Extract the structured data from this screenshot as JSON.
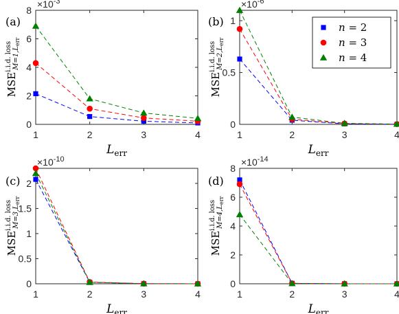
{
  "chart_data": [
    {
      "type": "line",
      "panel_label": "(a)",
      "x": [
        1,
        2,
        3,
        4
      ],
      "xlabel": "L",
      "xlabel_sub": "err",
      "ylabel_main": "MSE",
      "ylabel_sup": "i.i.d. loss",
      "ylabel_sub": "M=1,L",
      "ylabel_sub2": "err",
      "exponent_base": "×10",
      "exponent_power": "-3",
      "xlim": [
        1,
        4
      ],
      "ylim": [
        0,
        8
      ],
      "yticks": [
        0,
        2,
        4,
        6,
        8
      ],
      "xticks": [
        1,
        2,
        3,
        4
      ],
      "series": [
        {
          "label": "n = 2",
          "color": "#0000ff",
          "marker": "square",
          "values": [
            2.15,
            0.55,
            0.22,
            0.1
          ]
        },
        {
          "label": "n = 3",
          "color": "#ff0000",
          "marker": "circle",
          "values": [
            4.3,
            1.1,
            0.45,
            0.22
          ]
        },
        {
          "label": "n = 4",
          "color": "#008000",
          "marker": "triangle",
          "values": [
            6.9,
            1.8,
            0.8,
            0.42
          ]
        }
      ]
    },
    {
      "type": "line",
      "panel_label": "(b)",
      "x": [
        1,
        2,
        3,
        4
      ],
      "xlabel": "L",
      "xlabel_sub": "err",
      "ylabel_main": "MSE",
      "ylabel_sup": "i.i.d. loss",
      "ylabel_sub": "M=2,L",
      "ylabel_sub2": "err",
      "exponent_base": "×10",
      "exponent_power": "-6",
      "xlim": [
        1,
        4
      ],
      "ylim": [
        0,
        1.1
      ],
      "yticks": [
        0,
        0.5,
        1
      ],
      "ytick_labels": [
        "0",
        "0.5",
        "1"
      ],
      "xticks": [
        1,
        2,
        3,
        4
      ],
      "legend_position": "top-right",
      "series": [
        {
          "label": "n = 2",
          "color": "#0000ff",
          "marker": "square",
          "values": [
            0.63,
            0.04,
            0.005,
            0.001
          ]
        },
        {
          "label": "n = 3",
          "color": "#ff0000",
          "marker": "circle",
          "values": [
            0.92,
            0.05,
            0.008,
            0.002
          ]
        },
        {
          "label": "n = 4",
          "color": "#008000",
          "marker": "triangle",
          "values": [
            1.1,
            0.07,
            0.01,
            0.003
          ]
        }
      ]
    },
    {
      "type": "line",
      "panel_label": "(c)",
      "x": [
        1,
        2,
        3,
        4
      ],
      "xlabel": "L",
      "xlabel_sub": "err",
      "ylabel_main": "MSE",
      "ylabel_sup": "i.i.d. loss",
      "ylabel_sub": "M=3,L",
      "ylabel_sub2": "err",
      "exponent_base": "×10",
      "exponent_power": "-10",
      "xlim": [
        1,
        4
      ],
      "ylim": [
        0,
        2.3
      ],
      "yticks": [
        0,
        0.5,
        1,
        1.5,
        2
      ],
      "ytick_labels": [
        "0",
        "0.5",
        "1",
        "1.5",
        "2"
      ],
      "xticks": [
        1,
        2,
        3,
        4
      ],
      "series": [
        {
          "label": "n = 2",
          "color": "#0000ff",
          "marker": "square",
          "values": [
            2.08,
            0.03,
            0.002,
            0.0005
          ]
        },
        {
          "label": "n = 3",
          "color": "#ff0000",
          "marker": "circle",
          "values": [
            2.3,
            0.035,
            0.003,
            0.0006
          ]
        },
        {
          "label": "n = 4",
          "color": "#008000",
          "marker": "triangle",
          "values": [
            2.2,
            0.03,
            0.002,
            0.0005
          ]
        }
      ]
    },
    {
      "type": "line",
      "panel_label": "(d)",
      "x": [
        1,
        2,
        3,
        4
      ],
      "xlabel": "L",
      "xlabel_sub": "err",
      "ylabel_main": "MSE",
      "ylabel_sup": "i.i.d. loss",
      "ylabel_sub": "M=4,L",
      "ylabel_sub2": "err",
      "exponent_base": "×10",
      "exponent_power": "-14",
      "xlim": [
        1,
        4
      ],
      "ylim": [
        0,
        8
      ],
      "yticks": [
        0,
        2,
        4,
        6,
        8
      ],
      "xticks": [
        1,
        2,
        3,
        4
      ],
      "series": [
        {
          "label": "n = 2",
          "color": "#0000ff",
          "marker": "square",
          "values": [
            7.2,
            0.03,
            0.003,
            0.0005
          ]
        },
        {
          "label": "n = 3",
          "color": "#ff0000",
          "marker": "circle",
          "values": [
            6.9,
            0.03,
            0.003,
            0.0005
          ]
        },
        {
          "label": "n = 4",
          "color": "#008000",
          "marker": "triangle",
          "values": [
            4.8,
            0.02,
            0.002,
            0.0004
          ]
        }
      ]
    }
  ]
}
